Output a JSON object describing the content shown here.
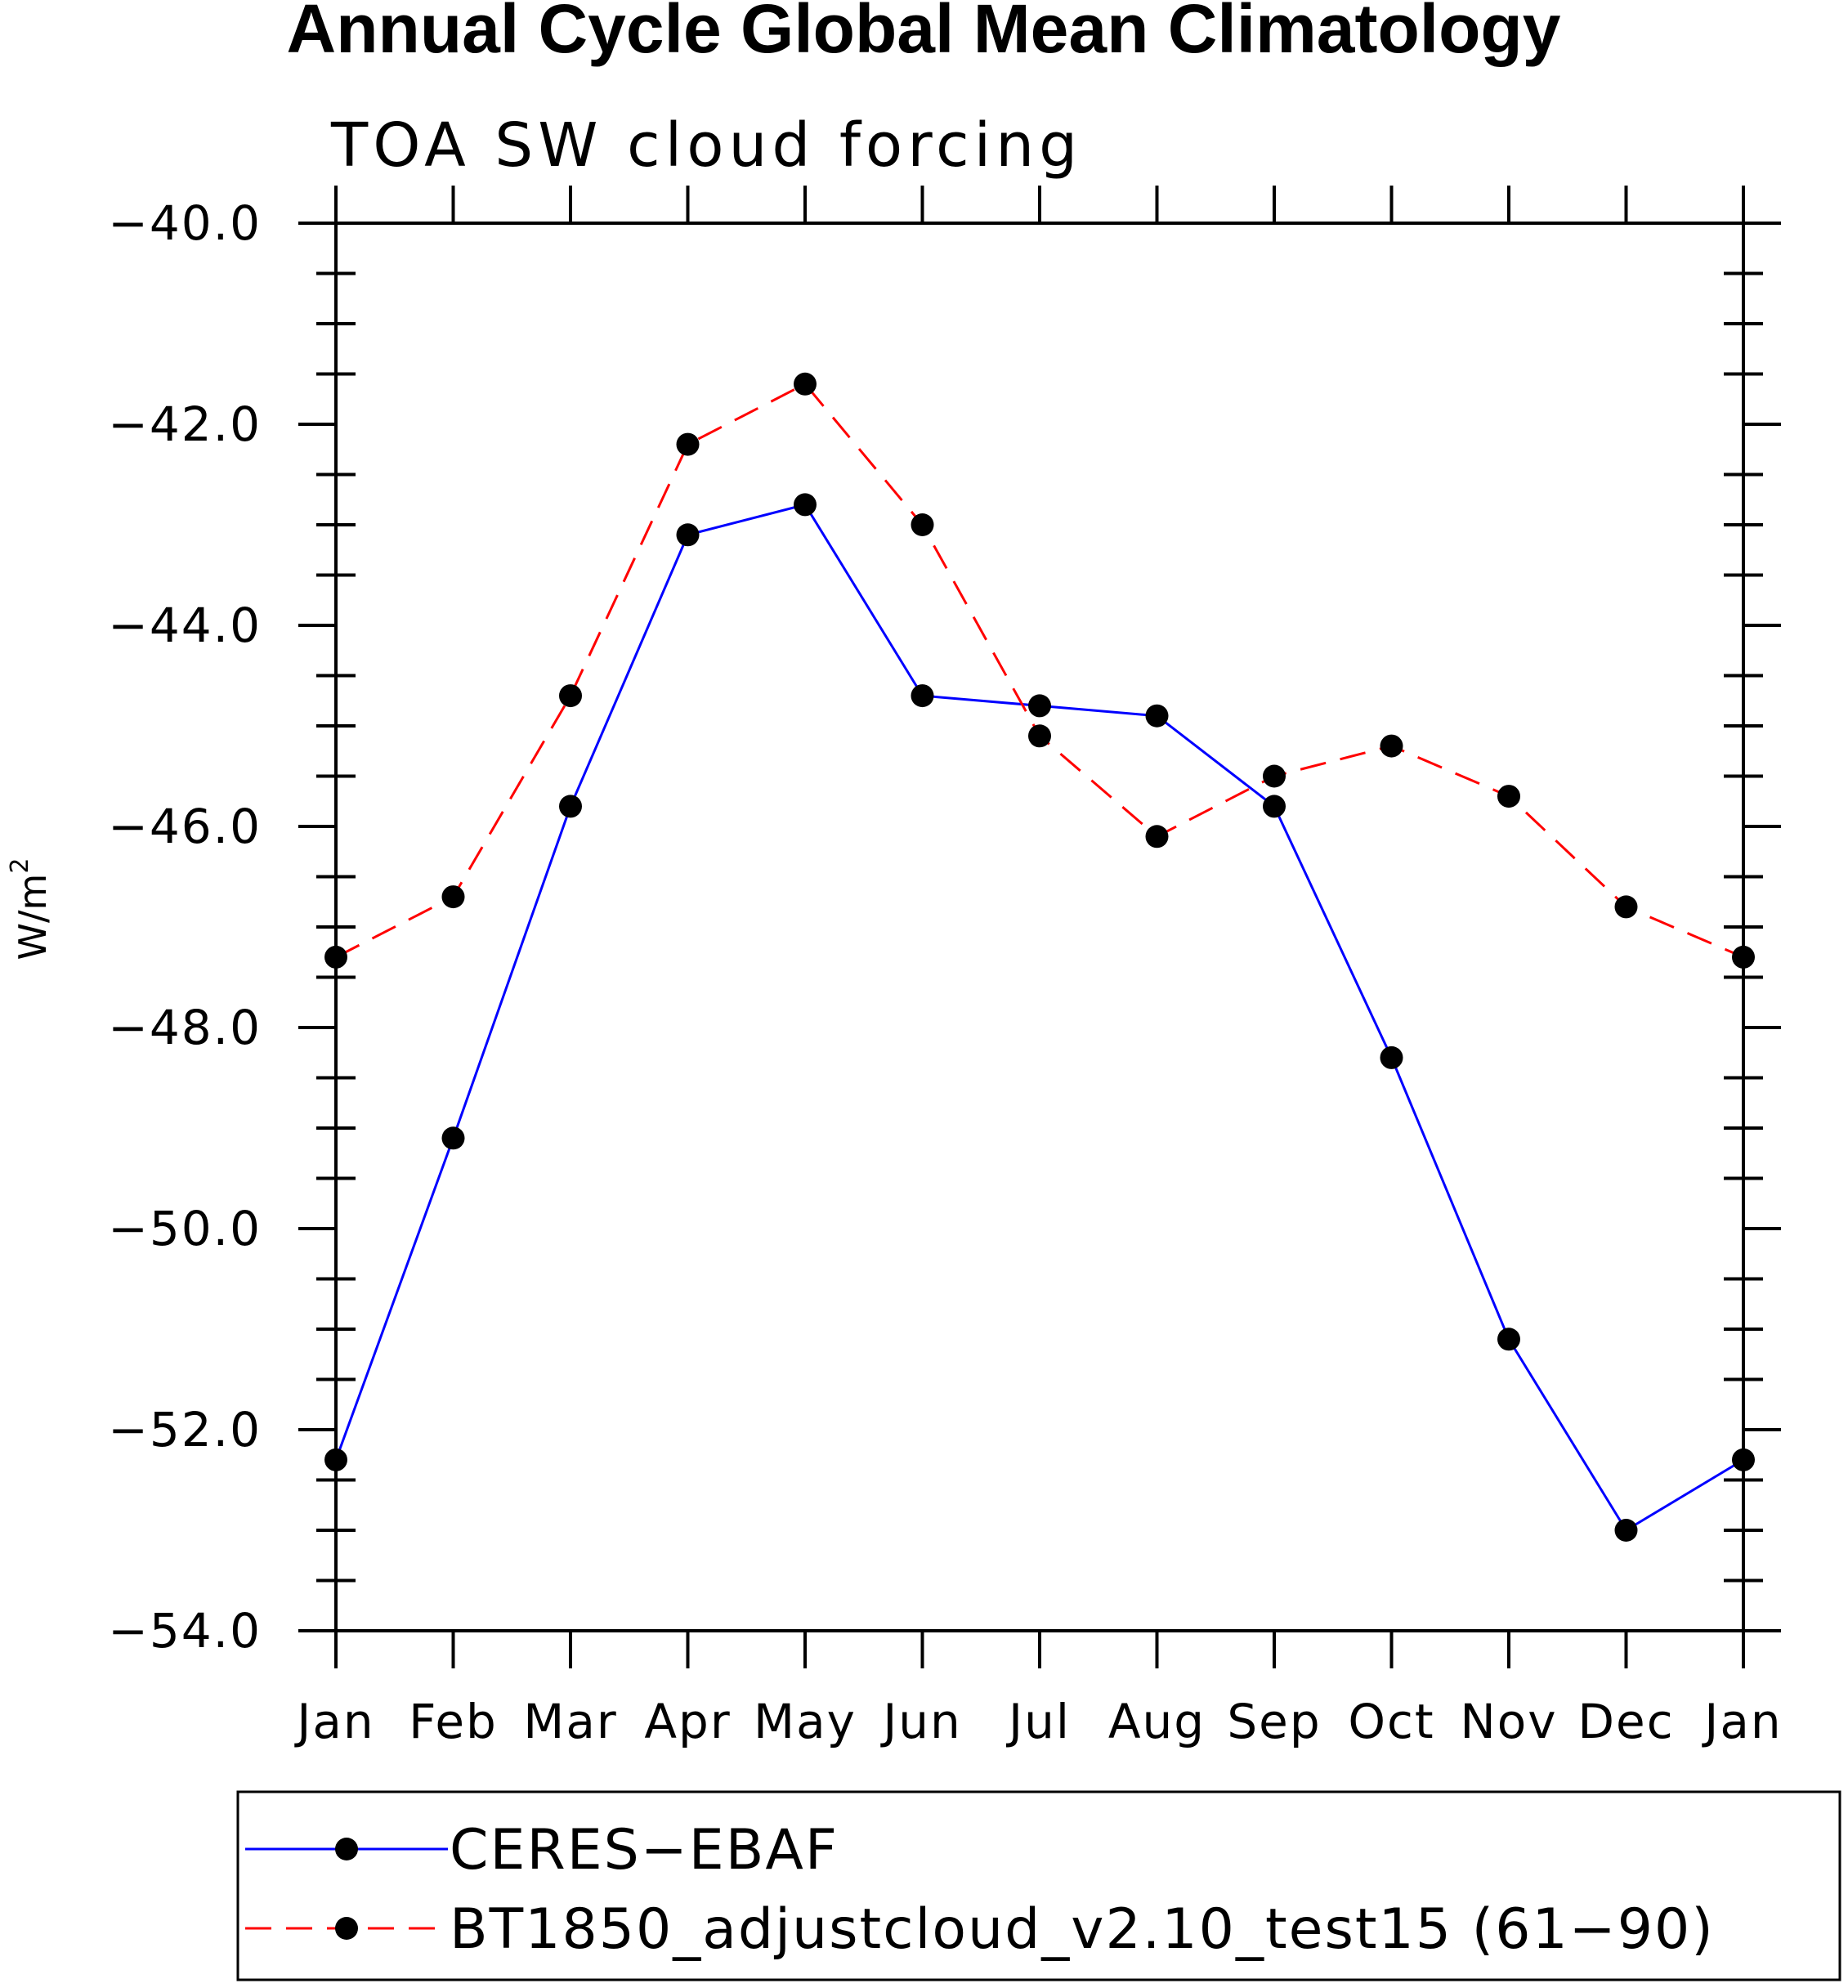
{
  "chart_data": {
    "type": "line",
    "title": "Annual Cycle Global Mean Climatology",
    "subtitle": "TOA SW cloud forcing",
    "ylabel": "W/m",
    "ylabel_sup": "2",
    "xlabel": "",
    "categories": [
      "Jan",
      "Feb",
      "Mar",
      "Apr",
      "May",
      "Jun",
      "Jul",
      "Aug",
      "Sep",
      "Oct",
      "Nov",
      "Dec",
      "Jan"
    ],
    "ylim": [
      -54.0,
      -40.0
    ],
    "yticks": [
      "-40.0",
      "-42.0",
      "-44.0",
      "-46.0",
      "-48.0",
      "-50.0",
      "-52.0",
      "-54.0"
    ],
    "grid": false,
    "legend_position": "bottom",
    "series": [
      {
        "name": "CERES-EBAF",
        "color": "#0000ff",
        "line_style": "solid",
        "marker": "filled-circle",
        "values": [
          -52.3,
          -49.1,
          -45.8,
          -43.1,
          -42.8,
          -44.7,
          -44.8,
          -44.9,
          -45.8,
          -48.3,
          -51.1,
          -53.0,
          -52.3
        ]
      },
      {
        "name": "BT1850_adjustcloud_v2.10_test15 (61-90)",
        "color": "#ff0000",
        "line_style": "dashed",
        "marker": "filled-circle",
        "values": [
          -47.3,
          -46.7,
          -44.7,
          -42.2,
          -41.6,
          -43.0,
          -45.1,
          -46.1,
          -45.5,
          -45.2,
          -45.7,
          -46.8,
          -47.3
        ]
      }
    ]
  }
}
